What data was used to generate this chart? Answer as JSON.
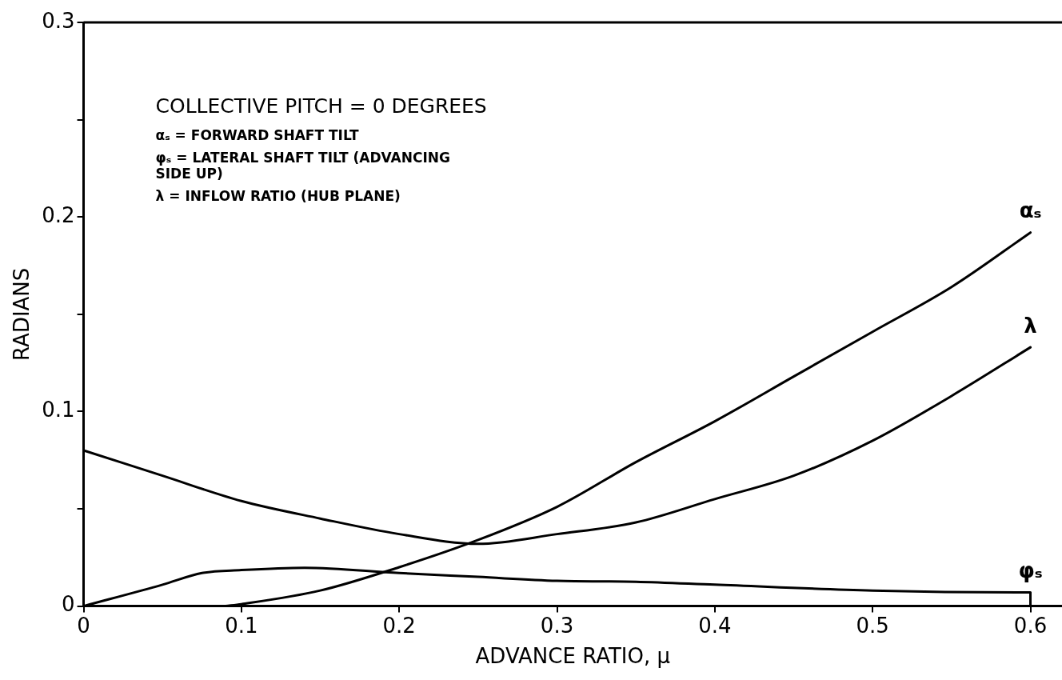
{
  "chart_data": {
    "type": "line",
    "xlabel": "ADVANCE RATIO, μ",
    "ylabel": "RADIANS",
    "xlim": [
      0,
      0.62
    ],
    "ylim": [
      0,
      0.3
    ],
    "xticks": [
      0,
      0.1,
      0.2,
      0.3,
      0.4,
      0.5,
      0.6
    ],
    "yticks": [
      0,
      {
        "value": 0.05,
        "label": null
      },
      0.1,
      {
        "value": 0.15,
        "label": null
      },
      0.2,
      {
        "value": 0.25,
        "label": null
      },
      0.3
    ],
    "grid": false,
    "legend": false,
    "marker": "none",
    "line_style": "solid",
    "annotations": [
      "COLLECTIVE PITCH = 0 DEGREES",
      "αₛ = FORWARD SHAFT TILT",
      "φₛ = LATERAL SHAFT TILT (ADVANCING SIDE UP)",
      "λ = INFLOW RATIO (HUB PLANE)"
    ],
    "series": [
      {
        "name": "αₛ",
        "color": "#000000",
        "x": [
          0.09,
          0.1,
          0.15,
          0.2,
          0.25,
          0.3,
          0.35,
          0.4,
          0.45,
          0.5,
          0.55,
          0.6
        ],
        "values": [
          0,
          0.001,
          0.008,
          0.02,
          0.034,
          0.051,
          0.074,
          0.095,
          0.118,
          0.141,
          0.164,
          0.192
        ]
      },
      {
        "name": "λ",
        "color": "#000000",
        "x": [
          0,
          0.05,
          0.1,
          0.15,
          0.2,
          0.25,
          0.3,
          0.35,
          0.4,
          0.45,
          0.5,
          0.55,
          0.6
        ],
        "values": [
          0.08,
          0.067,
          0.054,
          0.045,
          0.037,
          0.032,
          0.037,
          0.043,
          0.055,
          0.067,
          0.085,
          0.108,
          0.133
        ]
      },
      {
        "name": "φₛ",
        "color": "#000000",
        "x": [
          0,
          0.05,
          0.075,
          0.1,
          0.14,
          0.2,
          0.25,
          0.3,
          0.35,
          0.4,
          0.5,
          0.6,
          0.6
        ],
        "values": [
          0,
          0.011,
          0.017,
          0.0185,
          0.0197,
          0.017,
          0.015,
          0.013,
          0.0125,
          0.011,
          0.008,
          0.007,
          0
        ]
      }
    ]
  }
}
